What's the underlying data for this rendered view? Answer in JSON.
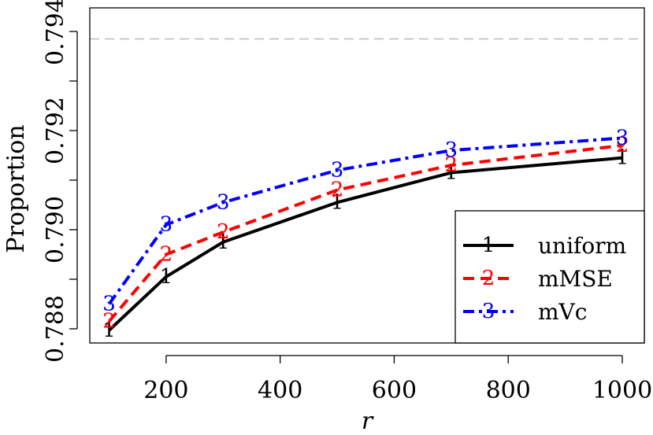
{
  "chart_data": {
    "type": "line",
    "x": [
      100,
      200,
      300,
      500,
      700,
      1000
    ],
    "xlabel": "r",
    "ylabel": "Proportion",
    "xlim": [
      100,
      1000
    ],
    "ylim": [
      0.788,
      0.794
    ],
    "xticks": [
      200,
      400,
      600,
      800,
      1000
    ],
    "yticks": [
      0.788,
      0.79,
      0.792,
      0.794
    ],
    "xtick_labels": [
      "200",
      "400",
      "600",
      "800",
      "1000"
    ],
    "ytick_labels": [
      "0.788",
      "0.790",
      "0.792",
      "0.794"
    ],
    "reference_line": 0.79385,
    "reference_color": "#bbbbbb",
    "grid": false,
    "legend_position": "bottom-right",
    "series": [
      {
        "name": "uniform",
        "marker": "1",
        "color": "#000000",
        "style": "solid",
        "values": [
          0.78797,
          0.78905,
          0.78975,
          0.79055,
          0.79115,
          0.79145
        ]
      },
      {
        "name": "mMSE",
        "marker": "2",
        "color": "#ff0000",
        "style": "dashed",
        "values": [
          0.78815,
          0.7895,
          0.78995,
          0.7908,
          0.7913,
          0.7917
        ]
      },
      {
        "name": "mVc",
        "marker": "3",
        "color": "#0000ff",
        "style": "dashdot",
        "values": [
          0.7885,
          0.7901,
          0.79055,
          0.7912,
          0.7916,
          0.79185
        ]
      }
    ]
  }
}
